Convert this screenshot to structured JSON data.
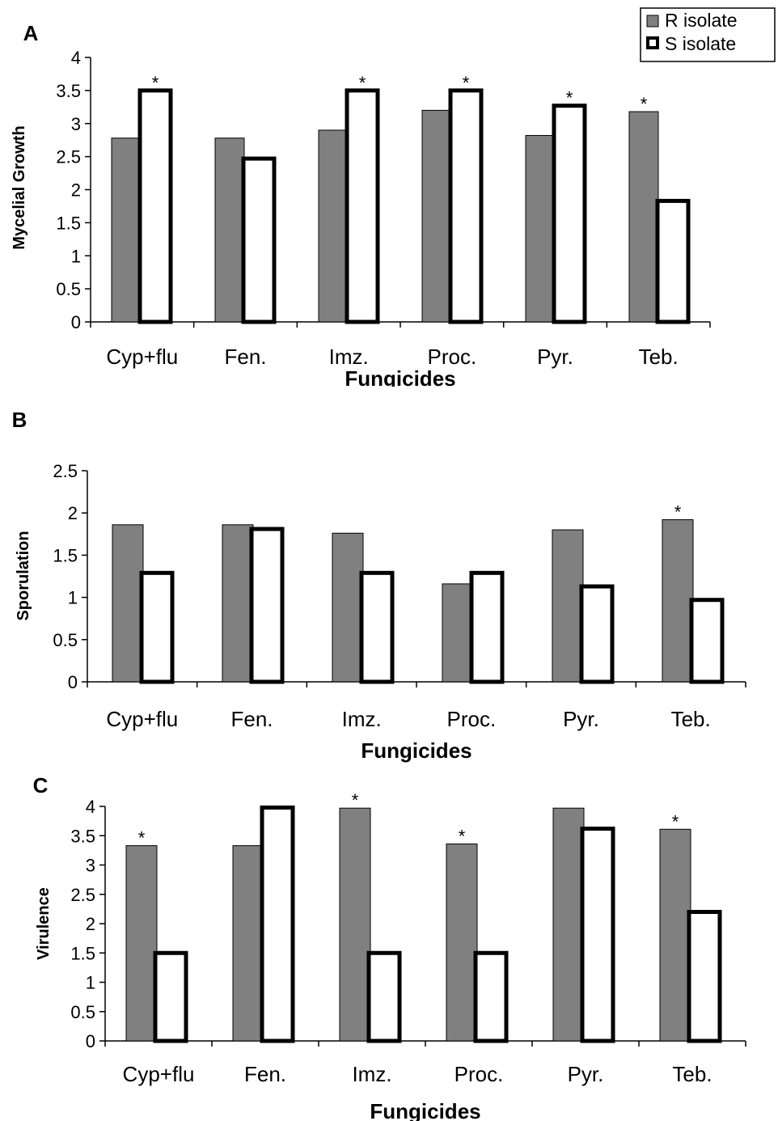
{
  "legend": {
    "r_label": "R isolate",
    "s_label": "S isolate"
  },
  "colors": {
    "r_fill": "#808080",
    "s_fill": "#ffffff",
    "s_stroke": "#000000"
  },
  "chart_data": [
    {
      "type": "bar",
      "panel": "A",
      "categories": [
        "Cyp+flu",
        "Fen.",
        "Imz.",
        "Proc.",
        "Pyr.",
        "Teb."
      ],
      "series": [
        {
          "name": "R isolate",
          "values": [
            2.78,
            2.78,
            2.9,
            3.2,
            2.82,
            3.18
          ]
        },
        {
          "name": "S isolate",
          "values": [
            3.5,
            2.47,
            3.5,
            3.5,
            3.27,
            1.83
          ]
        }
      ],
      "significant": [
        "*",
        "",
        "*",
        "*",
        "*",
        "*"
      ],
      "xlabel": "Fungicides",
      "ylabel": "Mycelial Growth",
      "ylim": [
        0,
        4
      ],
      "yticks": [
        "0",
        "0.5",
        "1",
        "1.5",
        "2",
        "2.5",
        "3",
        "3.5",
        "4"
      ],
      "grid": false,
      "legend_position": "top-right"
    },
    {
      "type": "bar",
      "panel": "B",
      "categories": [
        "Cyp+flu",
        "Fen.",
        "Imz.",
        "Proc.",
        "Pyr.",
        "Teb."
      ],
      "series": [
        {
          "name": "R isolate",
          "values": [
            1.86,
            1.86,
            1.76,
            1.16,
            1.8,
            1.92
          ]
        },
        {
          "name": "S isolate",
          "values": [
            1.29,
            1.81,
            1.29,
            1.29,
            1.13,
            0.97
          ]
        }
      ],
      "significant": [
        "",
        "",
        "",
        "",
        "",
        "*"
      ],
      "xlabel": "Fungicides",
      "ylabel": "Sporulation",
      "ylim": [
        0,
        2.5
      ],
      "yticks": [
        "0",
        "0.5",
        "1",
        "1.5",
        "2",
        "2.5"
      ],
      "grid": false
    },
    {
      "type": "bar",
      "panel": "C",
      "categories": [
        "Cyp+flu",
        "Fen.",
        "Imz.",
        "Proc.",
        "Pyr.",
        "Teb."
      ],
      "series": [
        {
          "name": "R isolate",
          "values": [
            3.33,
            3.33,
            3.97,
            3.36,
            3.97,
            3.61
          ]
        },
        {
          "name": "S isolate",
          "values": [
            1.5,
            3.98,
            1.5,
            1.5,
            3.62,
            2.2
          ]
        }
      ],
      "significant": [
        "*",
        "",
        "*",
        "*",
        "",
        "*"
      ],
      "xlabel": "Fungicides",
      "ylabel": "Virulence",
      "ylim": [
        0,
        4
      ],
      "yticks": [
        "0",
        "0.5",
        "1",
        "1.5",
        "2",
        "2.5",
        "3",
        "3.5",
        "4"
      ],
      "grid": false
    }
  ]
}
